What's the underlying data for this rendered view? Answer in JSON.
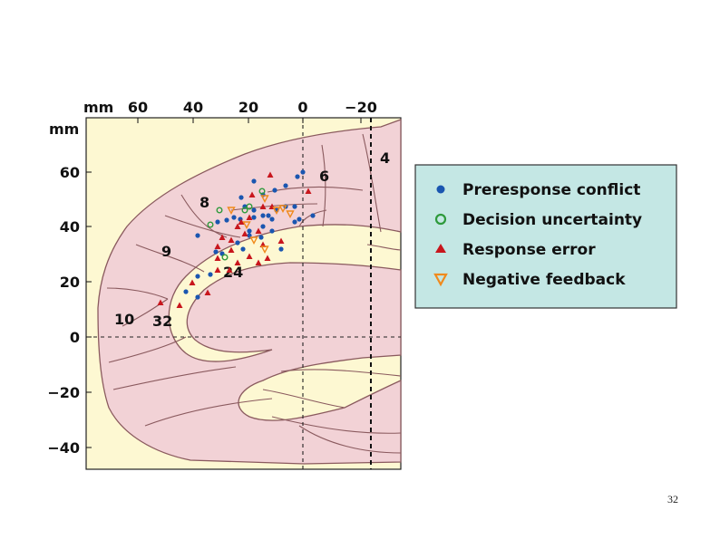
{
  "figure": {
    "x_unit": "mm",
    "y_unit": "mm",
    "x_ticks": [
      "60",
      "40",
      "20",
      "0",
      "−20"
    ],
    "y_ticks": [
      "60",
      "40",
      "20",
      "0",
      "−20",
      "−40"
    ],
    "region_labels": [
      "4",
      "6",
      "8",
      "9",
      "24",
      "10",
      "32"
    ]
  },
  "legend": {
    "items": [
      {
        "label": "Preresponse conflict",
        "marker": "filled-circle",
        "color": "#1a56b0"
      },
      {
        "label": "Decision uncertainty",
        "marker": "open-circle",
        "color": "#2e9a3c"
      },
      {
        "label": "Response error",
        "marker": "filled-triangle",
        "color": "#c8161d"
      },
      {
        "label": "Negative feedback",
        "marker": "open-inverted-triangle",
        "color": "#f08a1c"
      }
    ]
  },
  "colors": {
    "panel_bg": "#fdf8d2",
    "brain_fill": "#f2d2d6",
    "brain_stroke": "#8a5a5e",
    "legend_bg": "#c4e7e4"
  },
  "slide": {
    "page_number": "32"
  }
}
